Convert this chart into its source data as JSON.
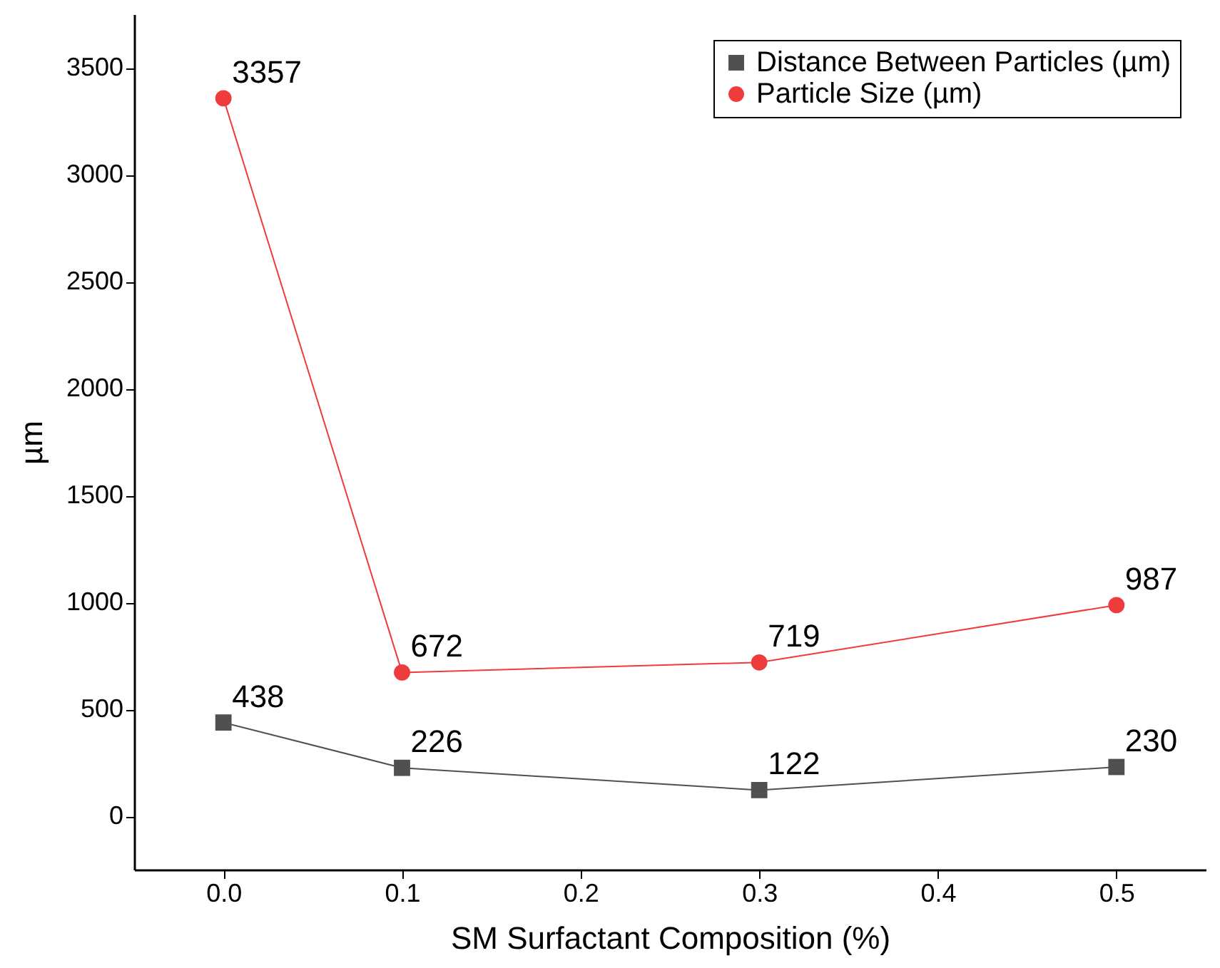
{
  "chart_data": {
    "type": "line",
    "xlabel": "SM Surfactant Composition (%)",
    "ylabel": "µm",
    "x": [
      0.0,
      0.1,
      0.3,
      0.5
    ],
    "series": [
      {
        "name": "Distance Between Particles (µm)",
        "color": "#505050",
        "marker": "square",
        "values": [
          438,
          226,
          122,
          230
        ]
      },
      {
        "name": "Particle Size (µm)",
        "color": "#ee3b3b",
        "marker": "circle",
        "values": [
          3357,
          672,
          719,
          987
        ]
      }
    ],
    "xlim": [
      -0.05,
      0.55
    ],
    "xticks": [
      {
        "value": 0.0,
        "label": "0.0"
      },
      0.1,
      0.2,
      0.3,
      0.4,
      0.5
    ],
    "ylim": [
      -250,
      3750
    ],
    "yticks": [
      0,
      500,
      1000,
      1500,
      2000,
      2500,
      3000,
      3500
    ],
    "data_labels": true,
    "grid": false,
    "legend": "top right",
    "line_style": "solid"
  }
}
